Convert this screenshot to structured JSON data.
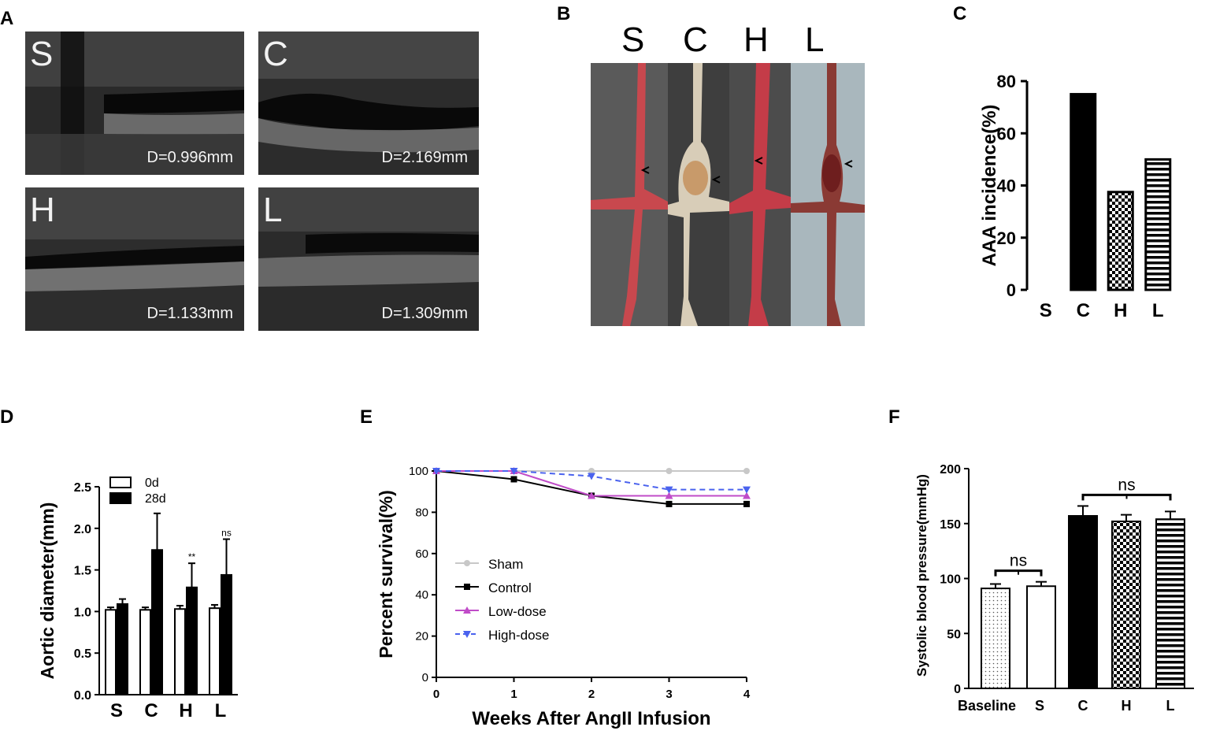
{
  "panels": {
    "a": {
      "label": "A",
      "images": [
        {
          "letter": "S",
          "measure": "D=0.996mm"
        },
        {
          "letter": "C",
          "measure": "D=2.169mm"
        },
        {
          "letter": "H",
          "measure": "D=1.133mm"
        },
        {
          "letter": "L",
          "measure": "D=1.309mm"
        }
      ]
    },
    "b": {
      "label": "B",
      "groups": [
        "S",
        "C",
        "H",
        "L"
      ]
    },
    "c": {
      "label": "C"
    },
    "d": {
      "label": "D"
    },
    "e": {
      "label": "E"
    },
    "f": {
      "label": "F"
    }
  },
  "chart_data": [
    {
      "id": "C",
      "type": "bar",
      "ylabel": "AAA incidence(%)",
      "categories": [
        "S",
        "C",
        "H",
        "L"
      ],
      "values": [
        0,
        75,
        37.5,
        50
      ],
      "patterns": [
        "none",
        "solid",
        "checker",
        "hstripes"
      ],
      "ylim": [
        0,
        80
      ],
      "yticks": [
        0,
        20,
        40,
        60,
        80
      ]
    },
    {
      "id": "D",
      "type": "bar",
      "ylabel": "Aortic diameter(mm)",
      "categories": [
        "S",
        "C",
        "H",
        "L"
      ],
      "series": [
        {
          "name": "0d",
          "values": [
            1.02,
            1.02,
            1.03,
            1.04
          ],
          "errors": [
            0.03,
            0.03,
            0.04,
            0.04
          ],
          "fill": "white"
        },
        {
          "name": "28d",
          "values": [
            1.09,
            1.74,
            1.29,
            1.44
          ],
          "errors": [
            0.06,
            0.44,
            0.29,
            0.43
          ],
          "fill": "black"
        }
      ],
      "annotations": [
        {
          "category": "H",
          "text": "**"
        },
        {
          "category": "L",
          "text": "ns"
        }
      ],
      "ylim": [
        0,
        2.5
      ],
      "yticks": [
        "0.0",
        "0.5",
        "1.0",
        "1.5",
        "2.0",
        "2.5"
      ]
    },
    {
      "id": "E",
      "type": "line",
      "xlabel": "Weeks After AngII Infusion",
      "ylabel": "Percent survival(%)",
      "x": [
        0,
        1,
        2,
        3,
        4
      ],
      "series": [
        {
          "name": "Sham",
          "values": [
            100,
            100,
            100,
            100,
            100
          ],
          "color": "#c8c8c8",
          "marker": "circle",
          "dash": false
        },
        {
          "name": "Control",
          "values": [
            100,
            96,
            88,
            84,
            84
          ],
          "color": "#000000",
          "marker": "square",
          "dash": false
        },
        {
          "name": "Low-dose",
          "values": [
            100,
            100,
            88,
            88,
            88
          ],
          "color": "#c04cc8",
          "marker": "triangle",
          "dash": false
        },
        {
          "name": "High-dose",
          "values": [
            100,
            100,
            97.5,
            91,
            91
          ],
          "color": "#4a62ee",
          "marker": "triangle-down",
          "dash": true
        }
      ],
      "xlim": [
        0,
        4
      ],
      "ylim": [
        0,
        100
      ],
      "xticks": [
        0,
        1,
        2,
        3,
        4
      ],
      "yticks": [
        0,
        20,
        40,
        60,
        80,
        100
      ]
    },
    {
      "id": "F",
      "type": "bar",
      "ylabel": "Systolic blood pressure(mmHg)",
      "categories": [
        "Baseline",
        "S",
        "C",
        "H",
        "L"
      ],
      "values": [
        91,
        93,
        157,
        152,
        154
      ],
      "errors": [
        4,
        4,
        9,
        6,
        7
      ],
      "patterns": [
        "dots",
        "none",
        "solid",
        "checker",
        "hstripes"
      ],
      "brackets": [
        {
          "from": 0,
          "to": 1,
          "text": "ns"
        },
        {
          "from": 2,
          "to": 4,
          "text": "ns"
        }
      ],
      "ylim": [
        0,
        200
      ],
      "yticks": [
        0,
        50,
        100,
        150,
        200
      ]
    }
  ]
}
